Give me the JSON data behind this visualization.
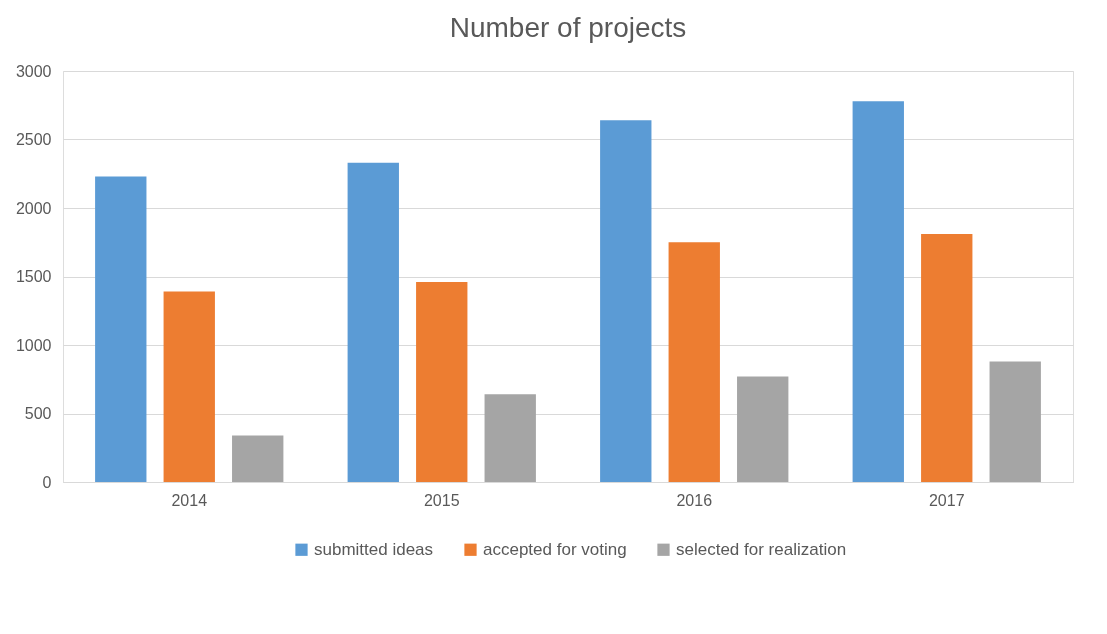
{
  "chart_data": {
    "type": "bar",
    "title": "Number of projects",
    "categories": [
      "2014",
      "2015",
      "2016",
      "2017"
    ],
    "series": [
      {
        "name": "submitted ideas",
        "color": "#5b9bd5",
        "values": [
          2230,
          2330,
          2640,
          2780
        ]
      },
      {
        "name": "accepted for voting",
        "color": "#ed7d31",
        "values": [
          1390,
          1460,
          1750,
          1810
        ]
      },
      {
        "name": "selected for realization",
        "color": "#a5a5a5",
        "values": [
          340,
          640,
          770,
          880
        ]
      }
    ],
    "ylim": [
      0,
      3000
    ],
    "yticks": [
      0,
      500,
      1000,
      1500,
      2000,
      2500,
      3000
    ],
    "grid": "y",
    "legend": "bottom"
  }
}
